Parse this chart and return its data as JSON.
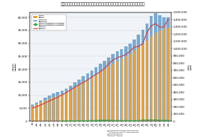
{
  "title": "［クラブ数、支援の単位数、登録児童数及び利用できなかった児童数の推移］",
  "ylabel_left": "（か所）",
  "ylabel_right": "（人）",
  "years": [
    "H2",
    "3年",
    "4年",
    "5年",
    "6年",
    "7年",
    "8年",
    "9年",
    "10年",
    "11年",
    "12年",
    "13年",
    "14年",
    "15年",
    "16年",
    "17年",
    "18年",
    "19年",
    "20年",
    "21年",
    "22年",
    "23年",
    "24年",
    "25年",
    "26年",
    "27年",
    "28年",
    "29年",
    "30年",
    "R元年",
    "2年",
    "3年",
    "4年"
  ],
  "clubs": [
    5765,
    6534,
    7155,
    8034,
    8854,
    9387,
    9890,
    10429,
    11122,
    12034,
    13088,
    14122,
    15110,
    16107,
    17026,
    18000,
    19098,
    20034,
    21085,
    22258,
    23167,
    24054,
    25000,
    26023,
    27112,
    28165,
    29474,
    30974,
    32885,
    34157,
    35034,
    35683,
    35961
  ],
  "units": [
    6390,
    7249,
    8024,
    9050,
    9960,
    10750,
    11280,
    11835,
    12603,
    13663,
    14877,
    16071,
    17244,
    18421,
    19621,
    20930,
    22072,
    23192,
    24468,
    25882,
    26925,
    27812,
    28800,
    30000,
    31547,
    33255,
    35236,
    37616,
    40665,
    41682,
    40713,
    40024,
    40061
  ],
  "registered": [
    181946,
    200745,
    224218,
    250210,
    277498,
    305371,
    330359,
    363640,
    394523,
    430816,
    467472,
    502477,
    534833,
    567939,
    609505,
    645328,
    679454,
    724718,
    793949,
    840552,
    875335,
    893475,
    916522,
    962604,
    1019278,
    1026985,
    1068938,
    1221696,
    1312016,
    1342854,
    1293285,
    1295592,
    1402666
  ],
  "waitlist": [
    null,
    null,
    null,
    null,
    null,
    null,
    null,
    3765,
    3900,
    3214,
    4000,
    5810,
    6390,
    7300,
    8607,
    12000,
    14000,
    15000,
    14000,
    11000,
    10000,
    9000,
    8689,
    7800,
    7671,
    7300,
    17000,
    16000,
    18000,
    18000,
    13416,
    11000,
    15180
  ],
  "bar1_color": "#F0A030",
  "bar2_color": "#7BAAD0",
  "line1_color": "#30A840",
  "line2_color": "#D04040",
  "footnote": "※5月1日現在（令和2年のみ7月1日現在）原生労働省調査\n※本調査は平成10年より開始",
  "ylim_left": [
    0,
    42000
  ],
  "ylim_right": [
    0,
    1500000
  ],
  "yticks_left": [
    0,
    5000,
    10000,
    15000,
    20000,
    25000,
    30000,
    35000,
    40000
  ],
  "yticks_right": [
    0,
    100000,
    200000,
    300000,
    400000,
    500000,
    600000,
    700000,
    800000,
    900000,
    1000000,
    1100000,
    1200000,
    1300000,
    1400000,
    1500000
  ],
  "legend_labels": [
    "クラブ数",
    "支援の単位数",
    "利用できなかった児童数（待機児童数）",
    "登録児童数"
  ],
  "bg_color": "#f0f4f8"
}
